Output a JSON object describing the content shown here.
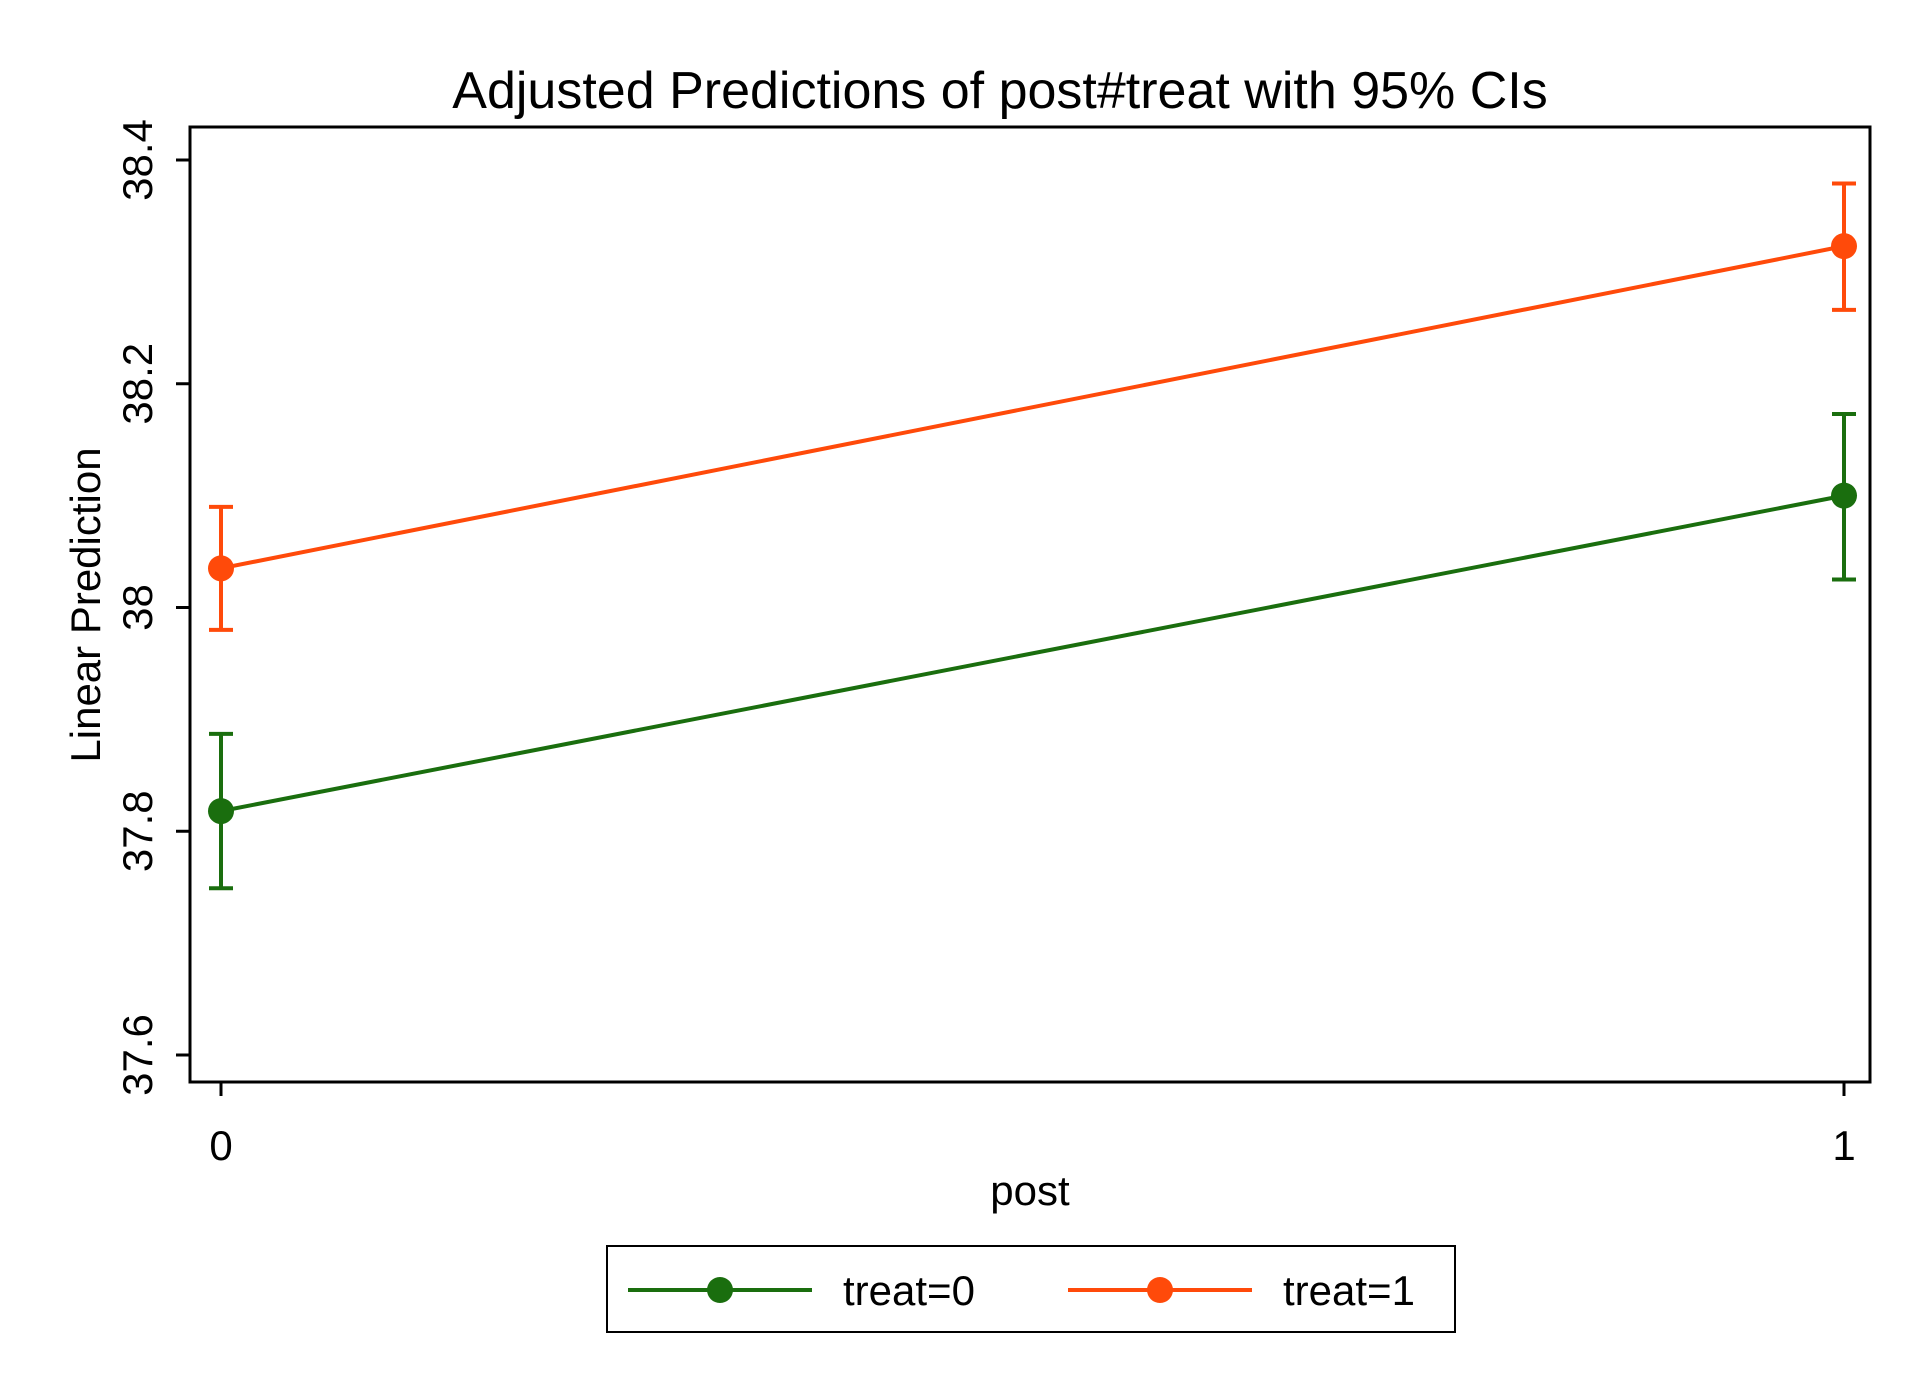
{
  "chart_data": {
    "type": "line",
    "title": "Adjusted Predictions of post#treat with 95% CIs",
    "xlabel": "post",
    "ylabel": "Linear Prediction",
    "categories": [
      "0",
      "1"
    ],
    "x": [
      0,
      1
    ],
    "ylim": [
      37.6,
      38.4
    ],
    "yticks": [
      37.6,
      37.8,
      38,
      38.2,
      38.4
    ],
    "ytick_labels": [
      "37.6",
      "37.8",
      "38",
      "38.2",
      "38.4"
    ],
    "grid": false,
    "legend_position": "bottom",
    "series": [
      {
        "name": "treat=0",
        "color": "#1a6e0e",
        "values": [
          37.818,
          38.1
        ],
        "ci_low": [
          37.749,
          38.025
        ],
        "ci_high": [
          37.887,
          38.173
        ]
      },
      {
        "name": "treat=1",
        "color": "#ff4a0a",
        "values": [
          38.035,
          38.323
        ],
        "ci_low": [
          37.98,
          38.266
        ],
        "ci_high": [
          38.09,
          38.379
        ]
      }
    ]
  }
}
